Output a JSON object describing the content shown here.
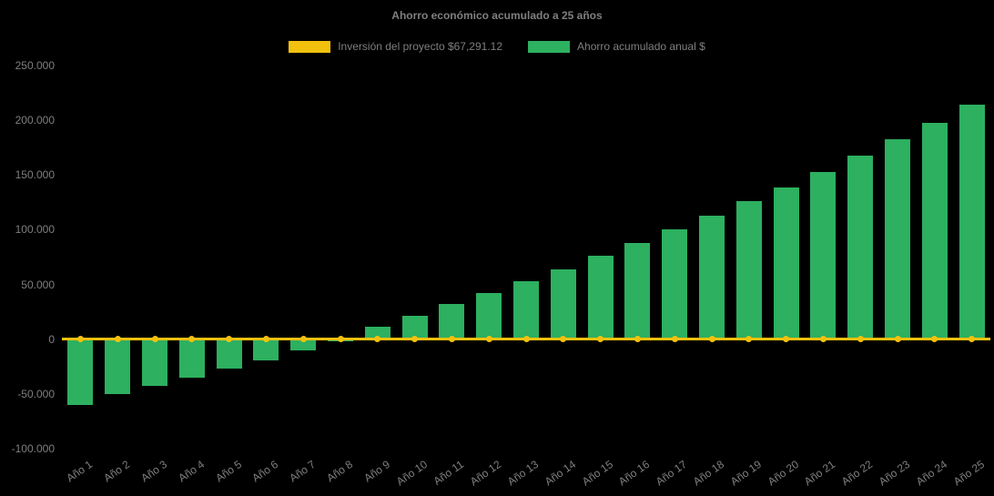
{
  "chart_data": {
    "type": "bar",
    "title": "Ahorro económico acumulado a 25 años",
    "categories": [
      "Año 1",
      "Año 2",
      "Año 3",
      "Año 4",
      "Año 5",
      "Año 6",
      "Año 7",
      "Año 8",
      "Año 9",
      "Año 10",
      "Año 11",
      "Año 12",
      "Año 13",
      "Año 14",
      "Año 15",
      "Año 16",
      "Año 17",
      "Año 18",
      "Año 19",
      "Año 20",
      "Año 21",
      "Año 22",
      "Año 23",
      "Año 24",
      "Año 25"
    ],
    "series": [
      {
        "name": "Inversión del proyecto $67,291.12",
        "type": "line",
        "color": "#F2C10E",
        "values": [
          0,
          0,
          0,
          0,
          0,
          0,
          0,
          0,
          0,
          0,
          0,
          0,
          0,
          0,
          0,
          0,
          0,
          0,
          0,
          0,
          0,
          0,
          0,
          0,
          0
        ]
      },
      {
        "name": "Ahorro acumulado anual $",
        "type": "bar",
        "color": "#2DB05F",
        "values": [
          -60000,
          -50000,
          -43000,
          -35000,
          -27000,
          -19000,
          -10000,
          -2000,
          11000,
          21000,
          32000,
          42000,
          53000,
          64000,
          76000,
          88000,
          100000,
          113000,
          126000,
          139000,
          153000,
          168000,
          183000,
          198000,
          214000
        ]
      }
    ],
    "ylim": [
      -100000,
      250000
    ],
    "ytick_values": [
      250000,
      200000,
      150000,
      100000,
      50000,
      0,
      -50000,
      -100000
    ],
    "ytick_labels": [
      "250.000",
      "200.000",
      "150.000",
      "100.000",
      "50.000",
      "0",
      "-50.000",
      "-100.000"
    ],
    "xlabel": "",
    "ylabel": "",
    "grid": false,
    "legend_position": "top",
    "background_color": "#000000",
    "text_color": "#7f7f7f"
  }
}
